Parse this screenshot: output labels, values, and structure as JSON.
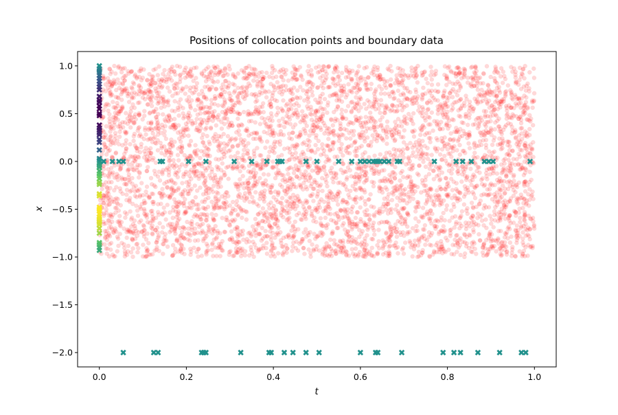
{
  "chart_data": {
    "type": "scatter",
    "title": "Positions of collocation points and boundary data",
    "xlabel": "t",
    "ylabel": "x",
    "xlim": [
      -0.05,
      1.05
    ],
    "ylim": [
      -2.15,
      1.15
    ],
    "x_ticks": [
      0.0,
      0.2,
      0.4,
      0.6,
      0.8,
      1.0
    ],
    "x_tick_labels": [
      "0.0",
      "0.2",
      "0.4",
      "0.6",
      "0.8",
      "1.0"
    ],
    "y_ticks": [
      1.0,
      0.5,
      0.0,
      -0.5,
      -1.0,
      -1.5,
      -2.0
    ],
    "y_tick_labels": [
      "1.0",
      "0.5",
      "0.0",
      "−0.5",
      "−1.0",
      "−1.5",
      "−2.0"
    ],
    "grid": false,
    "legend": "none",
    "series": [
      {
        "role": "collocation",
        "marker": "circle",
        "color": "#ff0000",
        "alpha": 0.15,
        "count": 5000,
        "t_range": [
          0.0,
          1.0
        ],
        "x_range": [
          -1.0,
          1.0
        ]
      },
      {
        "role": "initial-boundary",
        "marker": "x-filled",
        "colormap": "viridis",
        "points": [
          {
            "t": 0,
            "x": 1.0
          },
          {
            "t": 0,
            "x": 0.97
          },
          {
            "t": 0,
            "x": 0.95
          },
          {
            "t": 0,
            "x": 0.93
          },
          {
            "t": 0,
            "x": 0.9
          },
          {
            "t": 0,
            "x": 0.87
          },
          {
            "t": 0,
            "x": 0.84
          },
          {
            "t": 0,
            "x": 0.81
          },
          {
            "t": 0,
            "x": 0.78
          },
          {
            "t": 0,
            "x": 0.75
          },
          {
            "t": 0,
            "x": 0.68
          },
          {
            "t": 0,
            "x": 0.64
          },
          {
            "t": 0,
            "x": 0.62
          },
          {
            "t": 0,
            "x": 0.58
          },
          {
            "t": 0,
            "x": 0.55
          },
          {
            "t": 0,
            "x": 0.5
          },
          {
            "t": 0,
            "x": 0.48
          },
          {
            "t": 0,
            "x": 0.38
          },
          {
            "t": 0,
            "x": 0.35
          },
          {
            "t": 0,
            "x": 0.33
          },
          {
            "t": 0,
            "x": 0.3
          },
          {
            "t": 0,
            "x": 0.28
          },
          {
            "t": 0,
            "x": 0.23
          },
          {
            "t": 0,
            "x": 0.2
          },
          {
            "t": 0,
            "x": 0.12
          },
          {
            "t": 0,
            "x": 0.03
          },
          {
            "t": 0,
            "x": 0.01
          },
          {
            "t": 0,
            "x": -0.02
          },
          {
            "t": 0,
            "x": -0.04
          },
          {
            "t": 0,
            "x": -0.06
          },
          {
            "t": 0,
            "x": -0.1
          },
          {
            "t": 0,
            "x": -0.13
          },
          {
            "t": 0,
            "x": -0.15
          },
          {
            "t": 0,
            "x": -0.18
          },
          {
            "t": 0,
            "x": -0.22
          },
          {
            "t": 0,
            "x": -0.24
          },
          {
            "t": 0,
            "x": -0.34
          },
          {
            "t": 0,
            "x": -0.36
          },
          {
            "t": 0,
            "x": -0.48
          },
          {
            "t": 0,
            "x": -0.5
          },
          {
            "t": 0,
            "x": -0.52
          },
          {
            "t": 0,
            "x": -0.55
          },
          {
            "t": 0,
            "x": -0.58
          },
          {
            "t": 0,
            "x": -0.6
          },
          {
            "t": 0,
            "x": -0.62
          },
          {
            "t": 0,
            "x": -0.64
          },
          {
            "t": 0,
            "x": -0.66
          },
          {
            "t": 0,
            "x": -0.7
          },
          {
            "t": 0,
            "x": -0.75
          },
          {
            "t": 0,
            "x": -0.85
          },
          {
            "t": 0,
            "x": -0.87
          },
          {
            "t": 0,
            "x": -0.9
          },
          {
            "t": 0,
            "x": -0.93
          }
        ]
      },
      {
        "role": "boundary-x0",
        "marker": "x-filled",
        "color": "#21918c",
        "x": 0.0,
        "t_values": [
          0.01,
          0.03,
          0.045,
          0.055,
          0.14,
          0.145,
          0.205,
          0.245,
          0.31,
          0.35,
          0.385,
          0.41,
          0.415,
          0.42,
          0.475,
          0.5,
          0.55,
          0.58,
          0.6,
          0.61,
          0.62,
          0.63,
          0.635,
          0.64,
          0.645,
          0.655,
          0.665,
          0.685,
          0.69,
          0.77,
          0.82,
          0.835,
          0.855,
          0.885,
          0.895,
          0.905,
          0.99
        ]
      },
      {
        "role": "boundary-xm2",
        "marker": "x-filled",
        "color": "#21918c",
        "x": -2.0,
        "t_values": [
          0.055,
          0.125,
          0.135,
          0.235,
          0.24,
          0.245,
          0.325,
          0.39,
          0.395,
          0.425,
          0.445,
          0.475,
          0.505,
          0.6,
          0.635,
          0.64,
          0.695,
          0.79,
          0.815,
          0.83,
          0.87,
          0.92,
          0.97,
          0.98
        ]
      }
    ]
  }
}
